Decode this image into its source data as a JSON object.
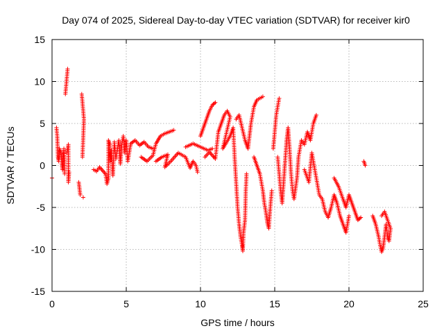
{
  "chart_data": {
    "type": "scatter",
    "title": "Day 074 of 2025, Sidereal Day-to-day VTEC variation (SDTVAR) for receiver kir0",
    "xlabel": "GPS time / hours",
    "ylabel": "SDTVAR / TECUs",
    "xlim": [
      0,
      25
    ],
    "ylim": [
      -15,
      15
    ],
    "xticks": [
      0,
      5,
      10,
      15,
      20,
      25
    ],
    "yticks": [
      -15,
      -10,
      -5,
      0,
      5,
      10,
      15
    ],
    "xtick_labels": [
      "0",
      "5",
      "10",
      "15",
      "20",
      "25"
    ],
    "ytick_labels": [
      "-15",
      "-10",
      "-5",
      "0",
      "5",
      "10",
      "15"
    ],
    "grid": true,
    "marker": "+",
    "color": "#ff0000",
    "series": [
      {
        "name": "SDTVAR",
        "points": [
          [
            0.0,
            -1.5
          ],
          [
            0.3,
            4.5
          ],
          [
            0.35,
            3.5
          ],
          [
            0.4,
            1.0
          ],
          [
            0.45,
            0.5
          ],
          [
            0.5,
            2.0
          ],
          [
            0.6,
            1.5
          ],
          [
            0.7,
            -0.5
          ],
          [
            0.8,
            2.0
          ],
          [
            0.85,
            -1.0
          ],
          [
            0.9,
            8.5
          ],
          [
            0.95,
            9.5
          ],
          [
            1.0,
            10.5
          ],
          [
            1.05,
            11.5
          ],
          [
            1.0,
            1.5
          ],
          [
            1.1,
            2.5
          ],
          [
            1.1,
            -2.0
          ],
          [
            1.15,
            -0.8
          ],
          [
            1.8,
            -2.0
          ],
          [
            1.9,
            -3.5
          ],
          [
            2.0,
            8.5
          ],
          [
            2.05,
            7.5
          ],
          [
            2.1,
            6.5
          ],
          [
            2.15,
            5.5
          ],
          [
            2.05,
            1.0
          ],
          [
            2.1,
            -3.8
          ],
          [
            2.8,
            -0.5
          ],
          [
            3.0,
            -0.7
          ],
          [
            3.2,
            -0.2
          ],
          [
            3.6,
            -1.0
          ],
          [
            3.7,
            -2.2
          ],
          [
            3.8,
            -1.5
          ],
          [
            3.8,
            3.0
          ],
          [
            3.9,
            2.5
          ],
          [
            3.9,
            0.5
          ],
          [
            4.0,
            1.8
          ],
          [
            4.1,
            -1.2
          ],
          [
            4.2,
            2.8
          ],
          [
            4.3,
            0.8
          ],
          [
            4.5,
            3.0
          ],
          [
            4.6,
            0.2
          ],
          [
            4.7,
            2.5
          ],
          [
            4.8,
            3.5
          ],
          [
            4.9,
            1.5
          ],
          [
            5.0,
            3.0
          ],
          [
            5.1,
            0.5
          ],
          [
            5.3,
            2.6
          ],
          [
            5.6,
            3.0
          ],
          [
            5.9,
            2.4
          ],
          [
            6.2,
            2.8
          ],
          [
            6.5,
            2.2
          ],
          [
            6.8,
            2.0
          ],
          [
            6.0,
            1.0
          ],
          [
            6.4,
            0.5
          ],
          [
            6.8,
            1.2
          ],
          [
            7.0,
            2.6
          ],
          [
            7.3,
            3.5
          ],
          [
            7.6,
            3.8
          ],
          [
            7.9,
            4.0
          ],
          [
            8.2,
            4.2
          ],
          [
            7.0,
            0.5
          ],
          [
            7.4,
            1.0
          ],
          [
            7.8,
            1.3
          ],
          [
            7.6,
            -0.2
          ],
          [
            8.0,
            0.5
          ],
          [
            8.5,
            1.5
          ],
          [
            9.0,
            1.0
          ],
          [
            9.3,
            -0.3
          ],
          [
            9.5,
            0.5
          ],
          [
            9.7,
            0.0
          ],
          [
            9.8,
            -0.8
          ],
          [
            9.0,
            2.2
          ],
          [
            9.5,
            2.6
          ],
          [
            10.0,
            2.2
          ],
          [
            10.5,
            1.8
          ],
          [
            10.8,
            2.0
          ],
          [
            10.0,
            3.5
          ],
          [
            10.2,
            4.5
          ],
          [
            10.4,
            5.5
          ],
          [
            10.6,
            6.5
          ],
          [
            10.8,
            7.2
          ],
          [
            11.0,
            7.5
          ],
          [
            10.3,
            1.0
          ],
          [
            10.6,
            1.6
          ],
          [
            11.0,
            0.8
          ],
          [
            11.2,
            4.0
          ],
          [
            11.4,
            5.0
          ],
          [
            11.6,
            6.0
          ],
          [
            11.8,
            6.5
          ],
          [
            12.0,
            5.8
          ],
          [
            11.5,
            2.0
          ],
          [
            12.0,
            3.5
          ],
          [
            12.2,
            4.5
          ],
          [
            12.3,
            1.0
          ],
          [
            12.4,
            -2.0
          ],
          [
            12.5,
            -5.0
          ],
          [
            12.6,
            -7.0
          ],
          [
            12.7,
            -8.5
          ],
          [
            12.8,
            -9.5
          ],
          [
            12.85,
            -10.2
          ],
          [
            12.9,
            -8.0
          ],
          [
            13.0,
            -6.5
          ],
          [
            13.05,
            -3.0
          ],
          [
            13.1,
            -1.0
          ],
          [
            12.4,
            5.5
          ],
          [
            12.6,
            6.0
          ],
          [
            12.8,
            4.5
          ],
          [
            13.0,
            3.0
          ],
          [
            13.2,
            2.0
          ],
          [
            13.3,
            3.5
          ],
          [
            13.4,
            5.0
          ],
          [
            13.5,
            6.0
          ],
          [
            13.6,
            7.0
          ],
          [
            13.8,
            7.8
          ],
          [
            14.0,
            8.0
          ],
          [
            14.2,
            8.2
          ],
          [
            13.6,
            1.0
          ],
          [
            13.8,
            0.0
          ],
          [
            14.0,
            -1.0
          ],
          [
            14.2,
            -3.0
          ],
          [
            14.3,
            -4.5
          ],
          [
            14.4,
            -5.5
          ],
          [
            14.5,
            -6.8
          ],
          [
            14.6,
            -7.5
          ],
          [
            14.7,
            -5.0
          ],
          [
            14.8,
            -3.0
          ],
          [
            14.9,
            2.0
          ],
          [
            15.0,
            4.0
          ],
          [
            15.1,
            6.0
          ],
          [
            15.2,
            7.0
          ],
          [
            15.3,
            8.0
          ],
          [
            15.2,
            1.0
          ],
          [
            15.3,
            -1.0
          ],
          [
            15.4,
            -3.0
          ],
          [
            15.5,
            -4.5
          ],
          [
            15.6,
            -2.0
          ],
          [
            15.7,
            0.5
          ],
          [
            15.8,
            3.0
          ],
          [
            15.9,
            4.5
          ],
          [
            16.0,
            2.0
          ],
          [
            16.1,
            -1.0
          ],
          [
            16.2,
            -3.0
          ],
          [
            16.3,
            -4.0
          ],
          [
            16.5,
            -1.5
          ],
          [
            16.6,
            1.0
          ],
          [
            16.8,
            3.0
          ],
          [
            17.0,
            2.5
          ],
          [
            17.2,
            4.0
          ],
          [
            17.4,
            3.0
          ],
          [
            17.6,
            5.0
          ],
          [
            17.8,
            6.0
          ],
          [
            17.0,
            -0.5
          ],
          [
            17.3,
            -2.0
          ],
          [
            17.5,
            1.5
          ],
          [
            17.7,
            -0.5
          ],
          [
            17.9,
            -2.5
          ],
          [
            18.0,
            -3.5
          ],
          [
            18.2,
            -4.0
          ],
          [
            18.4,
            -5.5
          ],
          [
            18.6,
            -6.2
          ],
          [
            18.8,
            -5.0
          ],
          [
            19.0,
            -3.5
          ],
          [
            19.2,
            -4.5
          ],
          [
            19.4,
            -6.0
          ],
          [
            19.6,
            -7.0
          ],
          [
            19.8,
            -8.0
          ],
          [
            20.0,
            -6.0
          ],
          [
            19.0,
            -1.5
          ],
          [
            19.3,
            -2.5
          ],
          [
            19.6,
            -4.0
          ],
          [
            19.8,
            -5.0
          ],
          [
            20.0,
            -3.5
          ],
          [
            20.2,
            -4.5
          ],
          [
            20.4,
            -5.5
          ],
          [
            20.6,
            -6.5
          ],
          [
            20.8,
            -6.2
          ],
          [
            21.0,
            0.5
          ],
          [
            21.1,
            0.0
          ],
          [
            21.6,
            -6.0
          ],
          [
            21.8,
            -7.0
          ],
          [
            22.0,
            -8.5
          ],
          [
            22.1,
            -9.5
          ],
          [
            22.2,
            -10.3
          ],
          [
            22.3,
            -9.8
          ],
          [
            22.4,
            -8.5
          ],
          [
            22.5,
            -7.0
          ],
          [
            22.6,
            -8.5
          ],
          [
            22.7,
            -9.0
          ],
          [
            22.8,
            -7.5
          ],
          [
            22.4,
            -5.5
          ],
          [
            22.2,
            -6.0
          ]
        ]
      }
    ]
  }
}
